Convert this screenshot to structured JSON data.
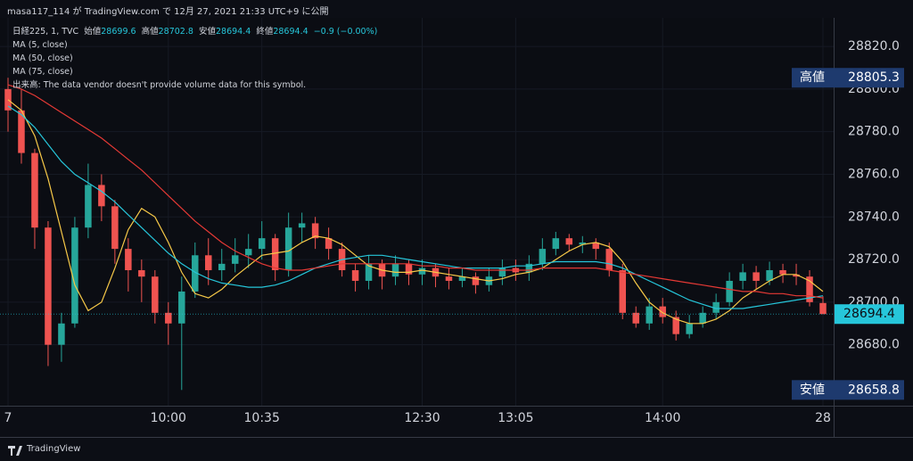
{
  "header": {
    "published": "masa117_114 が TradingView.com で 12月 27, 2021 21:33 UTC+9 に公開"
  },
  "footer": {
    "brand": "TradingView"
  },
  "chart_data": {
    "type": "candlestick",
    "symbol": "日経225, 1, TVC",
    "legend_labels": {
      "open": "始値",
      "high": "高値",
      "low": "安値",
      "close": "終値"
    },
    "change": "−0.9 (−0.00%)",
    "volume_note": "出来高: The data vendor doesn't provide volume data for this symbol.",
    "up_color": "#26a69a",
    "down_color": "#ef5350",
    "open": [
      28800,
      28790,
      28770,
      28735,
      28680,
      28690,
      28735,
      28755,
      28745,
      28725,
      28715,
      28712,
      28695,
      28690,
      28705,
      28722,
      28715,
      28718,
      28722,
      28725,
      28730,
      28715,
      28735,
      28737,
      28730,
      28725,
      28715,
      28710,
      28718,
      28712,
      28718,
      28713,
      28716,
      28712,
      28710,
      28712,
      28708,
      28712,
      28716,
      28714,
      28718,
      28725,
      28730,
      28727,
      28728,
      28725,
      28715,
      28695,
      28690,
      28698,
      28693,
      28685,
      28690,
      28695,
      28700,
      28710,
      28714,
      28710,
      28715,
      28713,
      28712,
      28699.6
    ],
    "high": [
      28805.3,
      28800,
      28772,
      28738,
      28695,
      28740,
      28765,
      28760,
      28748,
      28730,
      28720,
      28715,
      28700,
      28712,
      28728,
      28730,
      28725,
      28730,
      28732,
      28738,
      28732,
      28742,
      28742,
      28740,
      28735,
      28728,
      28718,
      28722,
      28720,
      28722,
      28720,
      28720,
      28718,
      28716,
      28716,
      28714,
      28716,
      28720,
      28720,
      28722,
      28730,
      28733,
      28732,
      28731,
      28730,
      28728,
      28718,
      28698,
      28702,
      28702,
      28696,
      28694,
      28698,
      28704,
      28714,
      28718,
      28717,
      28719,
      28718,
      28718,
      28715,
      28702.8
    ],
    "low": [
      28780,
      28765,
      28725,
      28670,
      28672,
      28688,
      28730,
      28738,
      28718,
      28705,
      28700,
      28690,
      28680,
      28658.8,
      28702,
      28708,
      28710,
      28714,
      28716,
      28720,
      28710,
      28712,
      28728,
      28725,
      28720,
      28712,
      28705,
      28706,
      28706,
      28708,
      28708,
      28708,
      28707,
      28706,
      28707,
      28704,
      28705,
      28708,
      28710,
      28710,
      28715,
      28722,
      28724,
      28723,
      28720,
      28712,
      28692,
      28688,
      28687,
      28690,
      28682,
      28683,
      28688,
      28692,
      28698,
      28706,
      28706,
      28708,
      28709,
      28708,
      28698,
      28694.4
    ],
    "close": [
      28790,
      28770,
      28735,
      28680,
      28690,
      28735,
      28755,
      28745,
      28725,
      28715,
      28712,
      28695,
      28690,
      28705,
      28722,
      28715,
      28718,
      28722,
      28725,
      28730,
      28715,
      28735,
      28737,
      28730,
      28725,
      28715,
      28710,
      28718,
      28712,
      28718,
      28713,
      28716,
      28712,
      28710,
      28712,
      28708,
      28712,
      28716,
      28714,
      28718,
      28725,
      28730,
      28727,
      28728,
      28725,
      28715,
      28695,
      28690,
      28698,
      28693,
      28685,
      28690,
      28695,
      28700,
      28710,
      28714,
      28710,
      28715,
      28713,
      28712,
      28700,
      28694.4
    ],
    "series": [
      {
        "name": "MA (5, close)",
        "color": "#f7c948",
        "values": [
          28795,
          28790,
          28778,
          28758,
          28733,
          28708,
          28696,
          28700,
          28716,
          28734,
          28744,
          28740,
          28728,
          28714,
          28704,
          28702,
          28706,
          28712,
          28717,
          28722,
          28723,
          28724,
          28728,
          28731,
          28730,
          28727,
          28722,
          28717,
          28715,
          28714,
          28714,
          28715,
          28714,
          28713,
          28712,
          28711,
          28710,
          28711,
          28713,
          28714,
          28716,
          28720,
          28724,
          28727,
          28728,
          28726,
          28719,
          28709,
          28700,
          28695,
          28692,
          28690,
          28690,
          28692,
          28696,
          28702,
          28706,
          28710,
          28713,
          28713,
          28710,
          28705
        ]
      },
      {
        "name": "MA (50, close)",
        "color": "#26c6da",
        "values": [
          28792,
          28788,
          28782,
          28774,
          28766,
          28760,
          28756,
          28752,
          28747,
          28741,
          28735,
          28729,
          28723,
          28718,
          28714,
          28711,
          28709,
          28708,
          28707,
          28707,
          28708,
          28710,
          28713,
          28716,
          28718,
          28720,
          28721,
          28722,
          28722,
          28721,
          28720,
          28719,
          28718,
          28717,
          28716,
          28716,
          28716,
          28716,
          28717,
          28717,
          28718,
          28719,
          28719,
          28719,
          28719,
          28718,
          28716,
          28713,
          28710,
          28707,
          28704,
          28701,
          28699,
          28697,
          28697,
          28697,
          28698,
          28699,
          28700,
          28701,
          28702,
          28703
        ]
      },
      {
        "name": "MA (75, close)",
        "color": "#e53935",
        "values": [
          28802,
          28800,
          28797,
          28793,
          28789,
          28785,
          28781,
          28777,
          28772,
          28767,
          28762,
          28756,
          28750,
          28744,
          28738,
          28733,
          28728,
          28724,
          28721,
          28718,
          28716,
          28715,
          28715,
          28716,
          28717,
          28718,
          28718,
          28718,
          28718,
          28718,
          28718,
          28717,
          28717,
          28716,
          28716,
          28715,
          28715,
          28715,
          28715,
          28715,
          28716,
          28716,
          28716,
          28716,
          28716,
          28715,
          28714,
          28713,
          28712,
          28711,
          28710,
          28709,
          28708,
          28707,
          28706,
          28705,
          28705,
          28704,
          28704,
          28703,
          28703,
          28702
        ]
      }
    ],
    "high_marker": {
      "label": "高値",
      "value": 28805.3
    },
    "low_marker": {
      "label": "安値",
      "value": 28658.8
    },
    "ylim": [
      28651.4,
      28841.8
    ],
    "yticks": [
      {
        "value": 28680,
        "label": "28680.0"
      },
      {
        "value": 28700,
        "label": "28700.0"
      },
      {
        "value": 28720,
        "label": "28720.0"
      },
      {
        "value": 28740,
        "label": "28740.0"
      },
      {
        "value": 28760,
        "label": "28760.0"
      },
      {
        "value": 28780,
        "label": "28780.0"
      },
      {
        "value": 28800,
        "label": "28800.0"
      },
      {
        "value": 28820,
        "label": "28820.0"
      }
    ],
    "xlim": [
      -0.6,
      61.8
    ],
    "xticks": [
      {
        "value": 0,
        "label": "7"
      },
      {
        "value": 12,
        "label": "10:00"
      },
      {
        "value": 19,
        "label": "10:35"
      },
      {
        "value": 31,
        "label": "12:30"
      },
      {
        "value": 38,
        "label": "13:05"
      },
      {
        "value": 49,
        "label": "14:00"
      },
      {
        "value": 61,
        "label": "28"
      }
    ]
  }
}
